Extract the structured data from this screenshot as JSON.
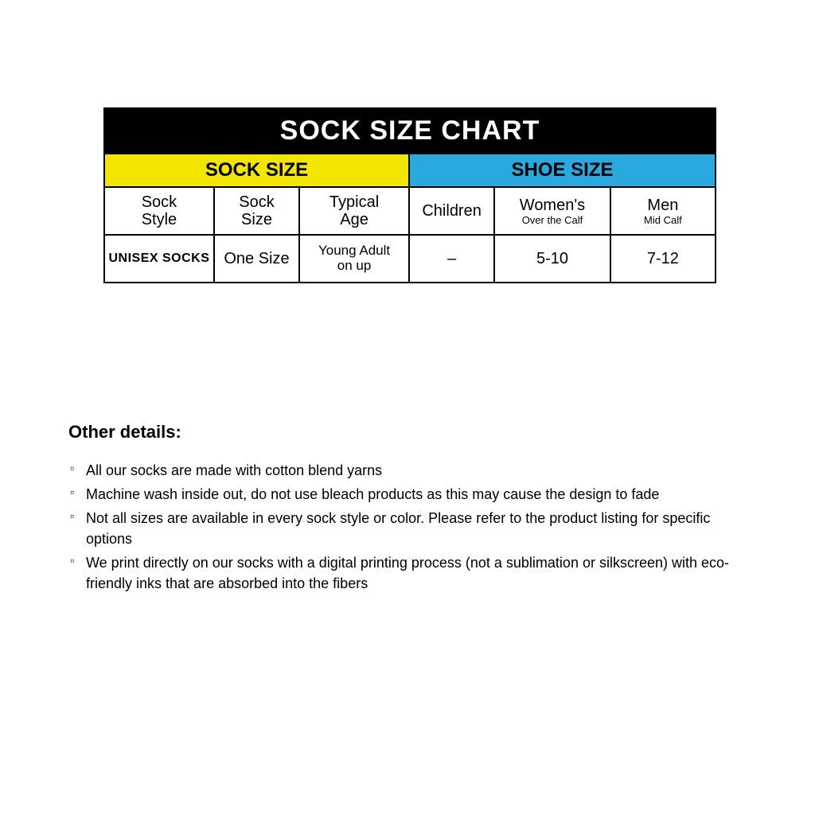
{
  "chart": {
    "title": "SOCK SIZE CHART",
    "group_sock": "SOCK SIZE",
    "group_shoe": "SHOE SIZE",
    "colors": {
      "title_bg": "#000000",
      "title_fg": "#ffffff",
      "sock_bg": "#f2e600",
      "shoe_bg": "#2aa9df",
      "border": "#000000",
      "cell_bg": "#ffffff"
    },
    "headers": {
      "c1": "Sock\nStyle",
      "c2": "Sock\nSize",
      "c3": "Typical\nAge",
      "c4_main": "Children",
      "c5_main": "Women's",
      "c5_sub": "Over the Calf",
      "c6_main": "Men",
      "c6_sub": "Mid Calf"
    },
    "row": {
      "c1": "UNISEX SOCKS",
      "c2": "One Size",
      "c3": "Young Adult\non up",
      "c4": "–",
      "c5": "5-10",
      "c6": "7-12"
    }
  },
  "details": {
    "title": "Other details:",
    "items": [
      "All our socks are made with cotton blend yarns",
      "Machine wash inside out, do not use bleach products as this may cause the design to fade",
      "Not all sizes are available in every sock style or color.  Please refer to the product listing for specific options",
      "We print directly on our socks with a digital printing process (not a sublimation or silkscreen) with eco-friendly inks that are absorbed into the fibers"
    ]
  }
}
